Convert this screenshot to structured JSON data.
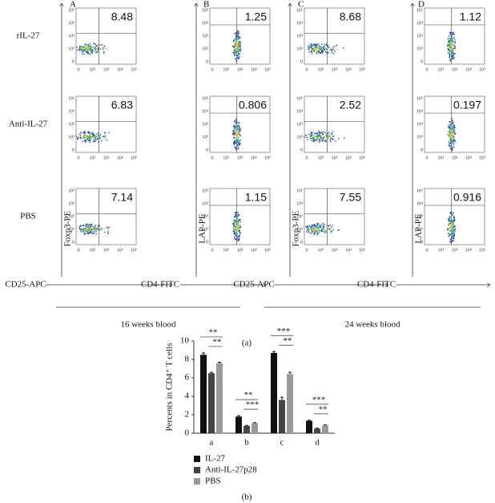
{
  "panels": [
    {
      "letter": "A",
      "y_label": "Foxp3-PE",
      "x_label": "CD25-APC",
      "values": [
        8.48,
        6.83,
        7.14
      ]
    },
    {
      "letter": "B",
      "y_label": "LAP-PE",
      "x_label": "CD4-FITC",
      "values": [
        1.25,
        0.806,
        1.15
      ]
    },
    {
      "letter": "C",
      "y_label": "Foxp3-PE",
      "x_label": "CD25-APC",
      "values": [
        8.68,
        2.52,
        7.55
      ]
    },
    {
      "letter": "D",
      "y_label": "LAP-PE",
      "x_label": "CD4-FITC",
      "values": [
        1.12,
        0.197,
        0.916
      ]
    }
  ],
  "rows": [
    "rIL-27",
    "Anti-IL-27",
    "PBS"
  ],
  "log_ticks": [
    "0",
    "10²",
    "10³",
    "10⁴",
    "10⁵"
  ],
  "groups": [
    "16 weeks blood",
    "24 weeks blood"
  ],
  "caption_a": "(a)",
  "caption_b": "(b)",
  "chart_data": {
    "type": "bar",
    "y_label": "Percents in CD4⁺ T cells",
    "categories": [
      "a",
      "b",
      "c",
      "d"
    ],
    "series": [
      {
        "name": "IL-27",
        "color": "#111111",
        "values": [
          8.5,
          1.8,
          8.7,
          1.35
        ],
        "errors": [
          0.2,
          0.1,
          0.15,
          0.05
        ]
      },
      {
        "name": "Anti-IL-27p28",
        "color": "#444444",
        "values": [
          6.5,
          0.8,
          3.6,
          0.5
        ],
        "errors": [
          0.1,
          0.05,
          0.3,
          0.05
        ]
      },
      {
        "name": "PBS",
        "color": "#999999",
        "values": [
          7.6,
          1.1,
          6.4,
          0.85
        ],
        "errors": [
          0.1,
          0.05,
          0.2,
          0.05
        ]
      }
    ],
    "significance": [
      [
        "**",
        "**"
      ],
      [
        "**",
        "***"
      ],
      [
        "***",
        "**"
      ],
      [
        "***",
        "**"
      ]
    ],
    "ylim": [
      0,
      10
    ],
    "yticks": [
      0,
      2,
      4,
      6,
      8,
      10
    ]
  }
}
